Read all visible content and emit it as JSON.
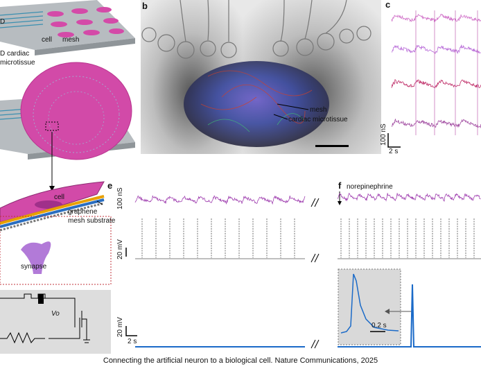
{
  "panel_a": {
    "corner_fragment": "D",
    "cell_top": "cell",
    "mesh_top": "mesh",
    "tissue_line1": "D cardiac",
    "tissue_line2": "microtissue",
    "cell_bottom": "cell",
    "graphene": "graphene",
    "mesh_substrate": "mesh substrate",
    "synapse": "synapse",
    "output": "Vo"
  },
  "panel_b": {
    "letter": "b",
    "mesh": "mesh",
    "tissue": "cardiac microtissue"
  },
  "panel_c": {
    "letter": "c",
    "scale_y": "100 nS",
    "scale_x": "2 s"
  },
  "panel_e": {
    "letter": "e",
    "scale_conductance": "100 nS",
    "scale_voltage_1": "20 mV",
    "scale_voltage_2": "20 mV",
    "scale_time": "2 s"
  },
  "panel_f": {
    "letter": "f",
    "drug": "norepinephrine",
    "inset_scale": "0.2 s"
  },
  "caption": "Connecting the artificial neuron to a biological cell. Nature Communications, 2025"
}
